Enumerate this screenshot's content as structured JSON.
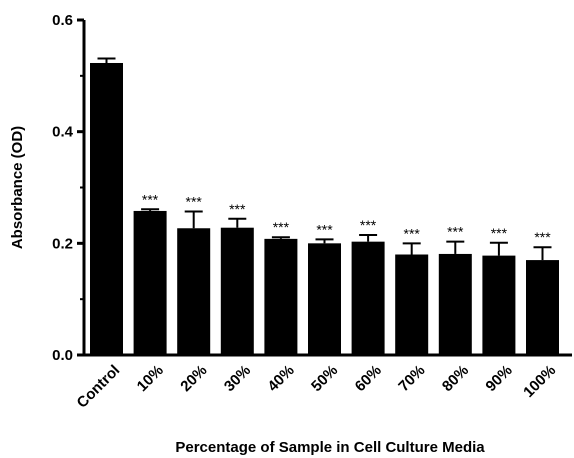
{
  "chart_data": {
    "type": "bar",
    "title": "",
    "xlabel": "Percentage of Sample in Cell Culture Media",
    "ylabel": "Absorbance (OD)",
    "ylim": [
      0,
      0.6
    ],
    "yticks": [
      "0.0",
      "0.2",
      "0.4",
      "0.6"
    ],
    "ytick_values": [
      0,
      0.2,
      0.4,
      0.6
    ],
    "categories": [
      "Control",
      "10%",
      "20%",
      "30%",
      "40%",
      "50%",
      "60%",
      "70%",
      "80%",
      "90%",
      "100%"
    ],
    "values": [
      0.523,
      0.258,
      0.227,
      0.228,
      0.208,
      0.2,
      0.203,
      0.18,
      0.181,
      0.178,
      0.17
    ],
    "errors": [
      0.008,
      0.003,
      0.03,
      0.016,
      0.003,
      0.007,
      0.012,
      0.02,
      0.022,
      0.023,
      0.023
    ],
    "annotations": [
      "",
      "***",
      "***",
      "***",
      "***",
      "***",
      "***",
      "***",
      "***",
      "***",
      "***"
    ],
    "bar_color": "#000000",
    "grid": false,
    "legend": "none"
  }
}
